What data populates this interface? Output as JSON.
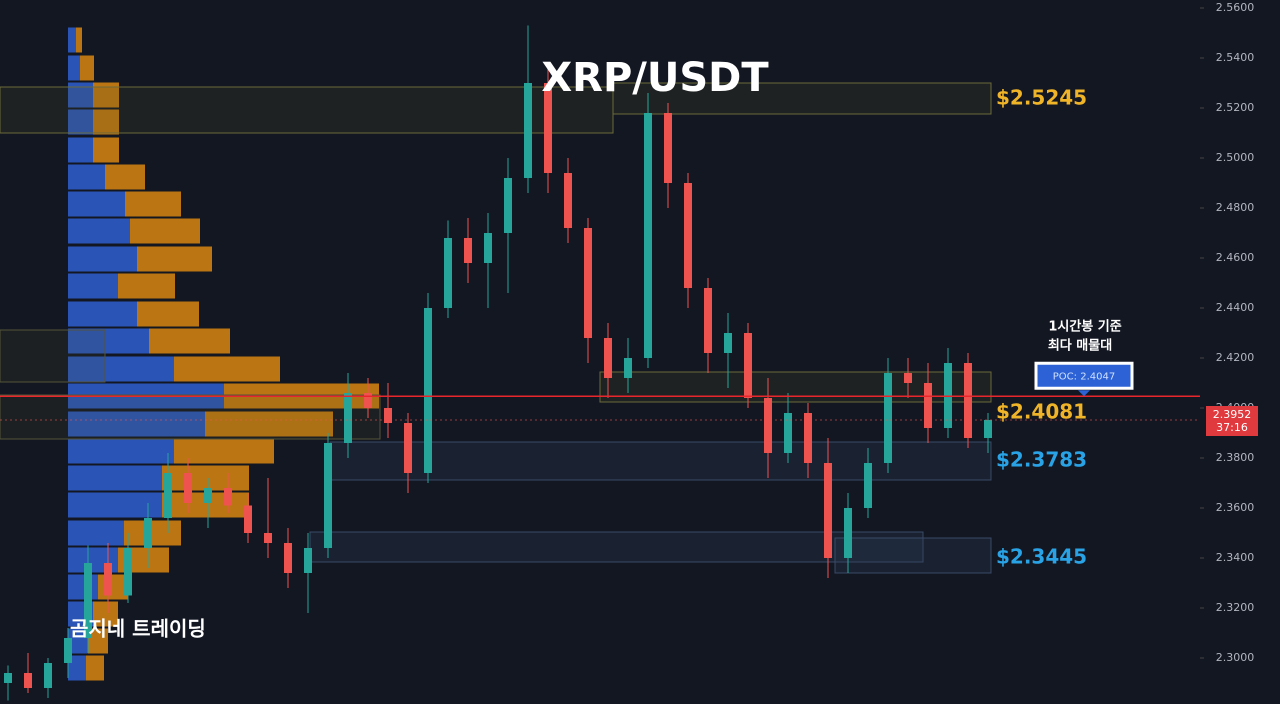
{
  "chart_data": {
    "type": "candlestick",
    "title": "XRP/USDT",
    "up_color": "#26a69a",
    "down_color": "#ef5350",
    "ylim": [
      2.2816,
      2.5632
    ],
    "yticks": [
      {
        "value": 2.3,
        "label": "2.3000"
      },
      {
        "value": 2.32,
        "label": "2.3200"
      },
      {
        "value": 2.34,
        "label": "2.3400"
      },
      {
        "value": 2.36,
        "label": "2.3600"
      },
      {
        "value": 2.38,
        "label": "2.3800"
      },
      {
        "value": 2.4,
        "label": "2.4000"
      },
      {
        "value": 2.42,
        "label": "2.4200"
      },
      {
        "value": 2.44,
        "label": "2.4400"
      },
      {
        "value": 2.46,
        "label": "2.4600"
      },
      {
        "value": 2.48,
        "label": "2.4800"
      },
      {
        "value": 2.5,
        "label": "2.5000"
      },
      {
        "value": 2.52,
        "label": "2.5200"
      },
      {
        "value": 2.54,
        "label": "2.5400"
      },
      {
        "value": 2.56,
        "label": "2.5600"
      }
    ],
    "grid": false,
    "open": [
      2.29,
      2.294,
      2.288,
      2.298,
      2.308,
      2.338,
      2.325,
      2.344,
      2.356,
      2.374,
      2.362,
      2.368,
      2.361,
      2.35,
      2.346,
      2.334,
      2.344,
      2.386,
      2.406,
      2.4,
      2.394,
      2.374,
      2.44,
      2.468,
      2.458,
      2.47,
      2.492,
      2.53,
      2.494,
      2.472,
      2.428,
      2.412,
      2.42,
      2.518,
      2.49,
      2.448,
      2.422,
      2.43,
      2.404,
      2.382,
      2.398,
      2.378,
      2.34,
      2.36,
      2.378,
      2.414,
      2.41,
      2.392,
      2.418,
      2.388
    ],
    "high": [
      2.297,
      2.302,
      2.3,
      2.312,
      2.345,
      2.346,
      2.35,
      2.362,
      2.382,
      2.38,
      2.372,
      2.374,
      2.366,
      2.372,
      2.352,
      2.35,
      2.39,
      2.414,
      2.412,
      2.41,
      2.398,
      2.446,
      2.475,
      2.476,
      2.478,
      2.5,
      2.553,
      2.536,
      2.5,
      2.476,
      2.434,
      2.428,
      2.526,
      2.522,
      2.494,
      2.452,
      2.438,
      2.434,
      2.412,
      2.406,
      2.402,
      2.388,
      2.366,
      2.384,
      2.42,
      2.42,
      2.418,
      2.424,
      2.422,
      2.398
    ],
    "low": [
      2.283,
      2.286,
      2.284,
      2.292,
      2.302,
      2.318,
      2.322,
      2.336,
      2.35,
      2.358,
      2.352,
      2.358,
      2.346,
      2.34,
      2.328,
      2.318,
      2.34,
      2.38,
      2.396,
      2.388,
      2.366,
      2.37,
      2.436,
      2.45,
      2.44,
      2.446,
      2.486,
      2.486,
      2.466,
      2.418,
      2.404,
      2.406,
      2.416,
      2.48,
      2.44,
      2.414,
      2.408,
      2.4,
      2.372,
      2.378,
      2.372,
      2.332,
      2.334,
      2.356,
      2.374,
      2.404,
      2.386,
      2.388,
      2.384,
      2.382
    ],
    "close": [
      2.294,
      2.288,
      2.298,
      2.308,
      2.338,
      2.325,
      2.344,
      2.356,
      2.374,
      2.362,
      2.368,
      2.361,
      2.35,
      2.346,
      2.334,
      2.344,
      2.386,
      2.406,
      2.4,
      2.394,
      2.374,
      2.44,
      2.468,
      2.458,
      2.47,
      2.492,
      2.53,
      2.494,
      2.472,
      2.428,
      2.412,
      2.42,
      2.518,
      2.49,
      2.448,
      2.422,
      2.43,
      2.404,
      2.382,
      2.398,
      2.378,
      2.34,
      2.36,
      2.378,
      2.414,
      2.41,
      2.392,
      2.418,
      2.388,
      2.3952
    ],
    "volume_profile": {
      "buy_color": "#2f5fd0",
      "sell_color": "#d9860f",
      "price_levels": [
        2.5472,
        2.536,
        2.5252,
        2.5144,
        2.5032,
        2.4924,
        2.4816,
        2.4708,
        2.4596,
        2.4488,
        2.4376,
        2.4268,
        2.4156,
        2.4048,
        2.3936,
        2.3828,
        2.372,
        2.3612,
        2.35,
        2.3392,
        2.3284,
        2.3176,
        2.3068,
        2.296
      ],
      "buy": [
        8,
        12,
        25,
        25,
        25,
        37,
        57,
        62,
        69,
        50,
        69,
        81,
        106,
        156,
        137,
        106,
        94,
        94,
        56,
        50,
        30,
        25,
        20,
        18
      ],
      "sell": [
        6,
        14,
        26,
        26,
        26,
        40,
        56,
        70,
        75,
        57,
        62,
        81,
        106,
        155,
        128,
        100,
        87,
        87,
        57,
        51,
        30,
        25,
        20,
        18
      ]
    },
    "poc": {
      "value": 2.4047,
      "label": "POC: 2.4047"
    },
    "last_price": 2.3952,
    "countdown": "37:16",
    "levels": [
      "$2.5245",
      "$2.4081",
      "$2.3783",
      "$2.3445"
    ],
    "annotation": [
      "1시간봉 기준",
      "최다 매물대"
    ],
    "watermark": "곰지네 트레이딩"
  }
}
